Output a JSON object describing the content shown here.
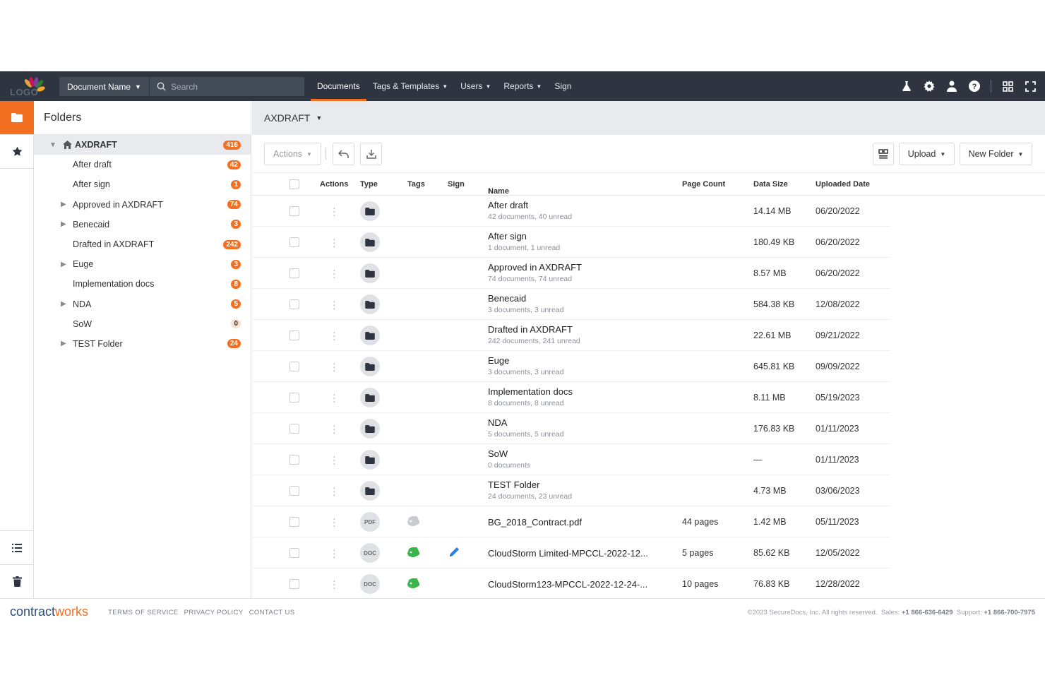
{
  "topbar": {
    "logo_text": "LOGO",
    "doc_filter": "Document Name",
    "search_placeholder": "Search",
    "nav": [
      {
        "label": "Documents",
        "active": true,
        "dropdown": false
      },
      {
        "label": "Tags & Templates",
        "dropdown": true
      },
      {
        "label": "Users",
        "dropdown": true
      },
      {
        "label": "Reports",
        "dropdown": true
      },
      {
        "label": "Sign",
        "dropdown": false
      }
    ],
    "icons": [
      "flask-icon",
      "gear-icon",
      "user-icon",
      "help-icon",
      "grid-icon",
      "expand-icon"
    ]
  },
  "colors": {
    "accent": "#f36f21",
    "topbar": "#2f3540"
  },
  "folders": {
    "title": "Folders",
    "root": {
      "label": "AXDRAFT",
      "count": "416"
    },
    "items": [
      {
        "label": "After draft",
        "count": "42",
        "expandable": false
      },
      {
        "label": "After sign",
        "count": "1",
        "expandable": false
      },
      {
        "label": "Approved in AXDRAFT",
        "count": "74",
        "expandable": true
      },
      {
        "label": "Benecaid",
        "count": "3",
        "expandable": true
      },
      {
        "label": "Drafted in AXDRAFT",
        "count": "242",
        "expandable": false
      },
      {
        "label": "Euge",
        "count": "3",
        "expandable": true
      },
      {
        "label": "Implementation docs",
        "count": "8",
        "expandable": false
      },
      {
        "label": "NDA",
        "count": "5",
        "expandable": true
      },
      {
        "label": "SoW",
        "count": "0",
        "expandable": false
      },
      {
        "label": "TEST Folder",
        "count": "24",
        "expandable": true
      }
    ]
  },
  "main": {
    "breadcrumb": "AXDRAFT",
    "toolbar": {
      "actions": "Actions",
      "upload": "Upload",
      "new_folder": "New Folder"
    },
    "columns": {
      "actions": "Actions",
      "type": "Type",
      "tags": "Tags",
      "sign": "Sign",
      "name": "Name",
      "page_count": "Page Count",
      "data_size": "Data Size",
      "uploaded": "Uploaded Date"
    },
    "rows": [
      {
        "type": "folder",
        "name": "After draft",
        "sub": "42 documents, 40 unread",
        "pages": "",
        "size": "14.14 MB",
        "date": "06/20/2022"
      },
      {
        "type": "folder",
        "name": "After sign",
        "sub": "1 document, 1 unread",
        "pages": "",
        "size": "180.49 KB",
        "date": "06/20/2022"
      },
      {
        "type": "folder",
        "name": "Approved in AXDRAFT",
        "sub": "74 documents, 74 unread",
        "pages": "",
        "size": "8.57 MB",
        "date": "06/20/2022"
      },
      {
        "type": "folder",
        "name": "Benecaid",
        "sub": "3 documents, 3 unread",
        "pages": "",
        "size": "584.38 KB",
        "date": "12/08/2022"
      },
      {
        "type": "folder",
        "name": "Drafted in AXDRAFT",
        "sub": "242 documents, 241 unread",
        "pages": "",
        "size": "22.61 MB",
        "date": "09/21/2022"
      },
      {
        "type": "folder",
        "name": "Euge",
        "sub": "3 documents, 3 unread",
        "pages": "",
        "size": "645.81 KB",
        "date": "09/09/2022"
      },
      {
        "type": "folder",
        "name": "Implementation docs",
        "sub": "8 documents, 8 unread",
        "pages": "",
        "size": "8.11 MB",
        "date": "05/19/2023"
      },
      {
        "type": "folder",
        "name": "NDA",
        "sub": "5 documents, 5 unread",
        "pages": "",
        "size": "176.83 KB",
        "date": "01/11/2023"
      },
      {
        "type": "folder",
        "name": "SoW",
        "sub": "0 documents",
        "pages": "",
        "size": "—",
        "date": "01/11/2023"
      },
      {
        "type": "folder",
        "name": "TEST Folder",
        "sub": "24 documents, 23 unread",
        "pages": "",
        "size": "4.73 MB",
        "date": "03/06/2023"
      },
      {
        "type": "PDF",
        "tag": "grey",
        "sign": false,
        "name": "BG_2018_Contract.pdf",
        "sub": "",
        "pages": "44 pages",
        "size": "1.42 MB",
        "date": "05/11/2023"
      },
      {
        "type": "DOC",
        "tag": "green",
        "sign": true,
        "name": "CloudStorm Limited-MPCCL-2022-12...",
        "sub": "",
        "pages": "5 pages",
        "size": "85.62 KB",
        "date": "12/05/2022"
      },
      {
        "type": "DOC",
        "tag": "green",
        "sign": false,
        "name": "CloudStorm123-MPCCL-2022-12-24-...",
        "sub": "",
        "pages": "10 pages",
        "size": "76.83 KB",
        "date": "12/28/2022"
      }
    ]
  },
  "footer": {
    "brand_a": "contract",
    "brand_b": "works",
    "links": [
      "TERMS OF SERVICE",
      "PRIVACY POLICY",
      "CONTACT US"
    ],
    "copyright": "©2023 SecureDocs, Inc. All rights reserved.",
    "sales_label": "Sales:",
    "sales": "+1 866-636-6429",
    "support_label": "Support:",
    "support": "+1 866-700-7975"
  }
}
